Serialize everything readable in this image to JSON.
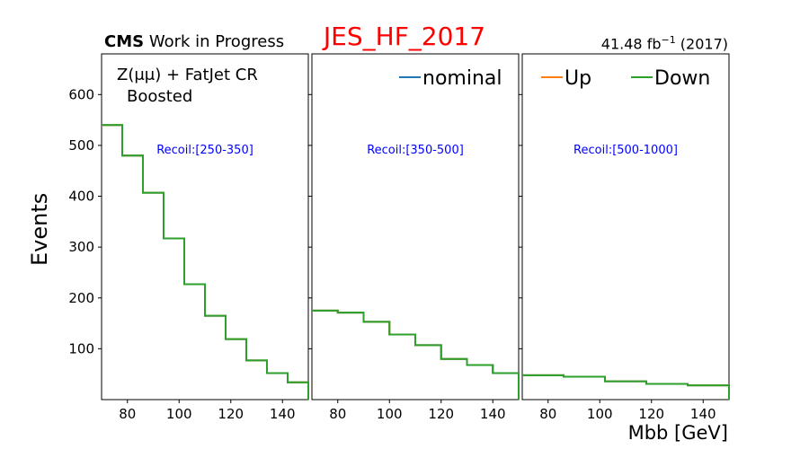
{
  "header": {
    "cms_bold": "CMS",
    "cms_rest": "Work in Progress",
    "title": "JES_HF_2017",
    "lumi_value": "41.48 fb",
    "lumi_exp": "−1",
    "lumi_year": "(2017)",
    "region_line1": "Z(μμ) + FatJet CR",
    "region_line2": "Boosted"
  },
  "colors": {
    "nominal": "#1f77b4",
    "up": "#ff7f0e",
    "down": "#2ca02c",
    "title": "#ff0000",
    "recoil_label": "#0000ff"
  },
  "chart_data": {
    "type": "line",
    "style": "step histogram",
    "title": "JES_HF_2017",
    "xlabel": "Mbb [GeV]",
    "ylabel": "Events",
    "xlim": [
      70,
      150
    ],
    "ylim": [
      0,
      680
    ],
    "yticks": [
      100,
      200,
      300,
      400,
      500,
      600
    ],
    "xticks": [
      80,
      100,
      120,
      140
    ],
    "legend": [
      "nominal",
      "Up",
      "Down"
    ],
    "panels": [
      {
        "label": "Recoil:[250-350]",
        "bin_edges": [
          70,
          78,
          86,
          94,
          102,
          110,
          118,
          126,
          134,
          142,
          150
        ],
        "series": [
          {
            "name": "nominal",
            "values": [
              540,
              480,
              407,
              317,
              227,
              165,
              119,
              77,
              52,
              34
            ]
          },
          {
            "name": "Up",
            "values": [
              540,
              480,
              407,
              317,
              227,
              165,
              119,
              77,
              52,
              34
            ]
          },
          {
            "name": "Down",
            "values": [
              540,
              480,
              407,
              317,
              227,
              165,
              119,
              77,
              52,
              34
            ]
          }
        ]
      },
      {
        "label": "Recoil:[350-500]",
        "bin_edges": [
          70,
          80,
          90,
          100,
          110,
          120,
          130,
          140,
          150
        ],
        "series": [
          {
            "name": "nominal",
            "values": [
              175,
              171,
              153,
              128,
              107,
              80,
              68,
              52
            ]
          },
          {
            "name": "Up",
            "values": [
              175,
              171,
              153,
              128,
              107,
              80,
              68,
              52
            ]
          },
          {
            "name": "Down",
            "values": [
              175,
              171,
              153,
              128,
              107,
              80,
              68,
              52
            ]
          }
        ]
      },
      {
        "label": "Recoil:[500-1000]",
        "bin_edges": [
          70,
          86,
          102,
          118,
          134,
          150
        ],
        "series": [
          {
            "name": "nominal",
            "values": [
              48,
              45,
              36,
              31,
              28
            ]
          },
          {
            "name": "Up",
            "values": [
              48,
              45,
              36,
              31,
              28
            ]
          },
          {
            "name": "Down",
            "values": [
              48,
              45,
              36,
              31,
              28
            ]
          }
        ]
      }
    ]
  }
}
